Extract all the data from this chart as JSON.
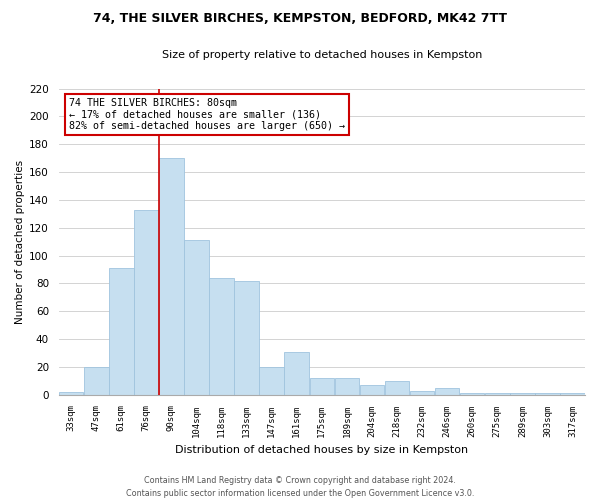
{
  "title": "74, THE SILVER BIRCHES, KEMPSTON, BEDFORD, MK42 7TT",
  "subtitle": "Size of property relative to detached houses in Kempston",
  "xlabel": "Distribution of detached houses by size in Kempston",
  "ylabel": "Number of detached properties",
  "bar_labels": [
    "33sqm",
    "47sqm",
    "61sqm",
    "76sqm",
    "90sqm",
    "104sqm",
    "118sqm",
    "133sqm",
    "147sqm",
    "161sqm",
    "175sqm",
    "189sqm",
    "204sqm",
    "218sqm",
    "232sqm",
    "246sqm",
    "260sqm",
    "275sqm",
    "289sqm",
    "303sqm",
    "317sqm"
  ],
  "bar_values": [
    2,
    20,
    91,
    133,
    170,
    111,
    84,
    82,
    20,
    31,
    12,
    12,
    7,
    10,
    3,
    5,
    1,
    1,
    1,
    1,
    1
  ],
  "bar_color": "#c6dff0",
  "bar_edge_color": "#a0c4de",
  "vline_x": 3.5,
  "annotation_title": "74 THE SILVER BIRCHES: 80sqm",
  "annotation_line1": "← 17% of detached houses are smaller (136)",
  "annotation_line2": "82% of semi-detached houses are larger (650) →",
  "annotation_box_color": "#ffffff",
  "annotation_box_edge": "#cc0000",
  "vline_color": "#cc0000",
  "ylim": [
    0,
    220
  ],
  "yticks": [
    0,
    20,
    40,
    60,
    80,
    100,
    120,
    140,
    160,
    180,
    200,
    220
  ],
  "footer1": "Contains HM Land Registry data © Crown copyright and database right 2024.",
  "footer2": "Contains public sector information licensed under the Open Government Licence v3.0.",
  "bg_color": "#ffffff",
  "grid_color": "#cccccc"
}
